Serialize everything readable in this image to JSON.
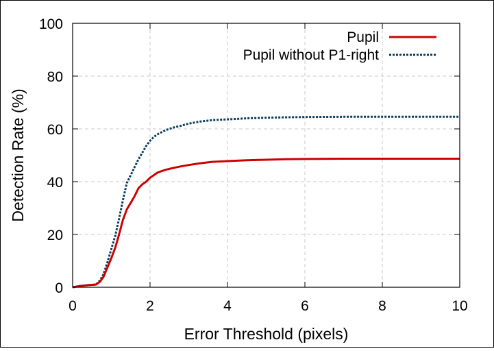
{
  "chart_data": {
    "type": "line",
    "title": "",
    "xlabel": "Error Threshold (pixels)",
    "ylabel": "Detection Rate (%)",
    "xlim": [
      0,
      10
    ],
    "ylim": [
      0,
      100
    ],
    "xticks": [
      0,
      2,
      4,
      6,
      8,
      10
    ],
    "yticks": [
      0,
      20,
      40,
      60,
      80,
      100
    ],
    "grid": true,
    "legend_position": "top-right",
    "series": [
      {
        "name": "Pupil",
        "color": "#cc0000",
        "style": "solid",
        "x": [
          0,
          0.2,
          0.4,
          0.6,
          0.7,
          0.8,
          0.9,
          1.0,
          1.1,
          1.2,
          1.3,
          1.4,
          1.5,
          1.6,
          1.7,
          1.8,
          1.9,
          2.0,
          2.1,
          2.2,
          2.4,
          2.6,
          2.8,
          3.0,
          3.3,
          3.6,
          4.0,
          4.5,
          5.0,
          5.5,
          6.0,
          7.0,
          8.0,
          9.0,
          10.0
        ],
        "y": [
          0,
          0.5,
          0.8,
          1.0,
          2.0,
          4.0,
          7.5,
          11.0,
          15.0,
          20.0,
          25.5,
          29.5,
          32.0,
          34.5,
          37.5,
          39.0,
          40.0,
          41.5,
          42.5,
          43.5,
          44.5,
          45.2,
          45.8,
          46.3,
          47.0,
          47.5,
          47.8,
          48.1,
          48.3,
          48.5,
          48.6,
          48.7,
          48.7,
          48.7,
          48.7
        ]
      },
      {
        "name": "Pupil without P1-right",
        "color": "#0d3c5c",
        "style": "dashed",
        "x": [
          0,
          0.2,
          0.4,
          0.6,
          0.7,
          0.8,
          0.9,
          1.0,
          1.1,
          1.2,
          1.3,
          1.4,
          1.5,
          1.6,
          1.7,
          1.8,
          1.9,
          2.0,
          2.1,
          2.2,
          2.4,
          2.6,
          2.8,
          3.0,
          3.3,
          3.6,
          4.0,
          4.5,
          5.0,
          5.5,
          6.0,
          7.0,
          8.0,
          9.0,
          10.0
        ],
        "y": [
          0,
          0.5,
          0.8,
          1.0,
          2.5,
          5.0,
          9.5,
          14.5,
          19.5,
          26.0,
          33.0,
          39.5,
          42.5,
          45.5,
          48.5,
          51.0,
          53.5,
          55.5,
          57.0,
          58.0,
          59.5,
          60.5,
          61.2,
          62.0,
          62.8,
          63.3,
          63.6,
          64.0,
          64.2,
          64.4,
          64.5,
          64.6,
          64.6,
          64.6,
          64.6
        ]
      }
    ]
  }
}
